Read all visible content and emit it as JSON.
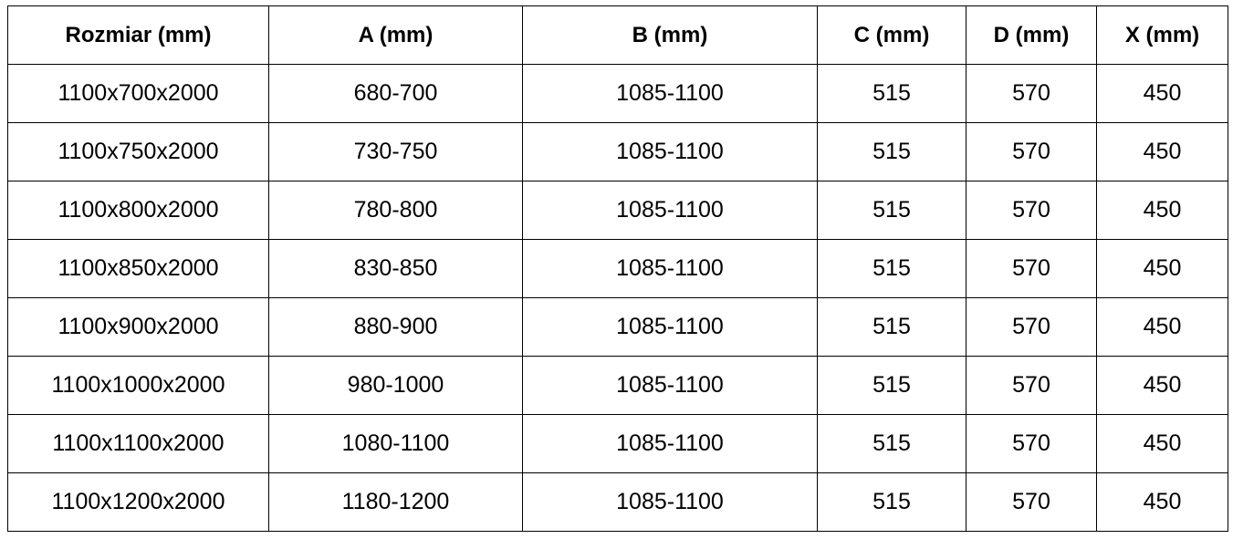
{
  "table": {
    "headers": [
      "Rozmiar (mm)",
      "A (mm)",
      "B (mm)",
      "C (mm)",
      "D (mm)",
      "X (mm)"
    ],
    "rows": [
      [
        "1100x700x2000",
        "680-700",
        "1085-1100",
        "515",
        "570",
        "450"
      ],
      [
        "1100x750x2000",
        "730-750",
        "1085-1100",
        "515",
        "570",
        "450"
      ],
      [
        "1100x800x2000",
        "780-800",
        "1085-1100",
        "515",
        "570",
        "450"
      ],
      [
        "1100x850x2000",
        "830-850",
        "1085-1100",
        "515",
        "570",
        "450"
      ],
      [
        "1100x900x2000",
        "880-900",
        "1085-1100",
        "515",
        "570",
        "450"
      ],
      [
        "1100x1000x2000",
        "980-1000",
        "1085-1100",
        "515",
        "570",
        "450"
      ],
      [
        "1100x1100x2000",
        "1080-1100",
        "1085-1100",
        "515",
        "570",
        "450"
      ],
      [
        "1100x1200x2000",
        "1180-1200",
        "1085-1100",
        "515",
        "570",
        "450"
      ]
    ]
  }
}
